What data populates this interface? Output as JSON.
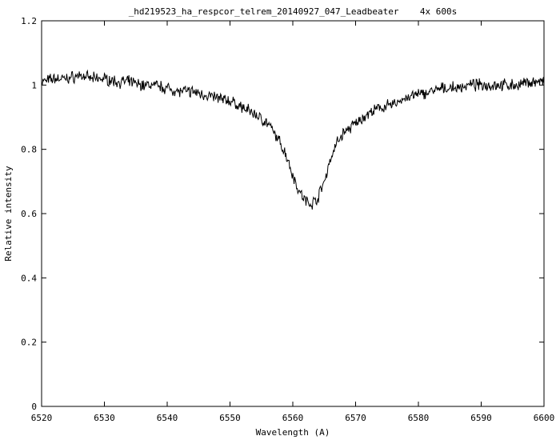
{
  "chart_data": {
    "type": "line",
    "title": "_hd219523_ha_respcor_telrem_20140927_047_Leadbeater    4x 600s",
    "xlabel": "Wavelength (A)",
    "ylabel": "Relative intensity",
    "xlim": [
      6520,
      6600
    ],
    "ylim": [
      0,
      1.2
    ],
    "xticks": [
      "6520",
      "6530",
      "6540",
      "6550",
      "6560",
      "6570",
      "6580",
      "6590",
      "6600"
    ],
    "yticks": [
      "0",
      "0.2",
      "0.4",
      "0.6",
      "0.8",
      "1",
      "1.2"
    ],
    "grid": false,
    "legend": "none",
    "line_color": "#000000",
    "series": [
      {
        "x": [
          6520,
          6522,
          6524,
          6526,
          6528,
          6530,
          6532,
          6534,
          6536,
          6538,
          6540,
          6542,
          6544,
          6546,
          6548,
          6550,
          6552,
          6554,
          6556,
          6557,
          6558,
          6559,
          6560,
          6561,
          6562,
          6563,
          6564,
          6565,
          6566,
          6567,
          6568,
          6570,
          6572,
          6574,
          6576,
          6578,
          6580,
          6582,
          6584,
          6586,
          6588,
          6590,
          6592,
          6594,
          6596,
          6598,
          6600
        ],
        "y": [
          1.01,
          1.02,
          1.02,
          1.03,
          1.02,
          1.02,
          1.01,
          1.01,
          1.0,
          1.0,
          0.99,
          0.98,
          0.98,
          0.97,
          0.96,
          0.95,
          0.93,
          0.91,
          0.88,
          0.85,
          0.82,
          0.78,
          0.72,
          0.67,
          0.64,
          0.63,
          0.65,
          0.7,
          0.77,
          0.82,
          0.85,
          0.88,
          0.91,
          0.93,
          0.94,
          0.96,
          0.97,
          0.98,
          0.99,
          0.99,
          1.0,
          1.0,
          1.0,
          1.0,
          1.0,
          1.01,
          1.01
        ]
      }
    ]
  }
}
